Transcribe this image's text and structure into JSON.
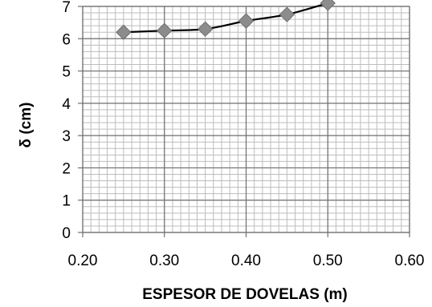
{
  "chart_data": {
    "type": "line",
    "title": "",
    "xlabel": "ESPESOR DE DOVELAS (m)",
    "ylabel": "δ (cm)",
    "xlim": [
      0.2,
      0.6
    ],
    "ylim": [
      0,
      7
    ],
    "x_ticks": [
      "0.20",
      "0.30",
      "0.40",
      "0.50",
      "0.60"
    ],
    "y_ticks": [
      "0",
      "1",
      "2",
      "3",
      "4",
      "5",
      "6",
      "7"
    ],
    "grid": true,
    "legend": "none",
    "series": [
      {
        "x": [
          0.25,
          0.3,
          0.35,
          0.4,
          0.45,
          0.5
        ],
        "y": [
          6.2,
          6.25,
          6.3,
          6.55,
          6.75,
          7.1
        ],
        "line_color": "#000000",
        "marker": "diamond",
        "marker_color": "#8c8c8c"
      }
    ]
  }
}
